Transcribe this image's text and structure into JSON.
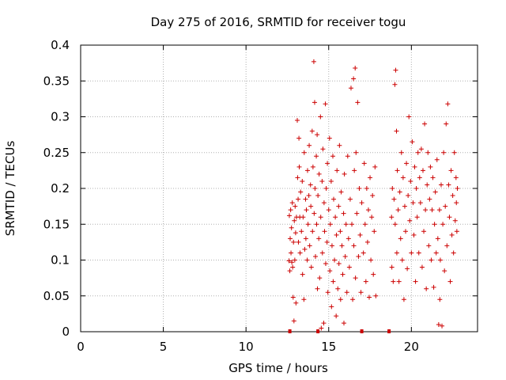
{
  "chart_data": {
    "type": "scatter",
    "title": "Day 275 of 2016, SRMTID for receiver togu",
    "xlabel": "GPS time / hours",
    "ylabel": "SRMTID / TECUs",
    "xlim": [
      0,
      24
    ],
    "ylim": [
      0,
      0.4
    ],
    "x_ticks": [
      0,
      5,
      10,
      15,
      20
    ],
    "x_tick_labels": [
      "0",
      "5",
      "10",
      "15",
      "20"
    ],
    "y_ticks": [
      0,
      0.05,
      0.1,
      0.15,
      0.2,
      0.25,
      0.3,
      0.35,
      0.4
    ],
    "y_tick_labels": [
      "0",
      "0.05",
      "0.1",
      "0.15",
      "0.2",
      "0.25",
      "0.3",
      "0.35",
      "0.4"
    ],
    "grid": true,
    "marker": "+",
    "series_color": "#cc0000",
    "grid_color": "#b0b0b0",
    "series": [
      {
        "name": "SRMTID",
        "points": [
          [
            12.6,
            0.099
          ],
          [
            12.62,
            0.162
          ],
          [
            12.65,
            0.085
          ],
          [
            12.67,
            0.13
          ],
          [
            12.7,
            0.17
          ],
          [
            12.72,
            0.11
          ],
          [
            12.75,
            0.145
          ],
          [
            12.77,
            0.097
          ],
          [
            12.8,
            0.18
          ],
          [
            12.82,
            0.09
          ],
          [
            12.85,
            0.048
          ],
          [
            12.87,
            0.125
          ],
          [
            12.9,
            0.015
          ],
          [
            12.92,
            0.155
          ],
          [
            12.95,
            0.1
          ],
          [
            12.97,
            0.175
          ],
          [
            13.0,
            0.138
          ],
          [
            13.02,
            0.04
          ],
          [
            13.05,
            0.16
          ],
          [
            13.1,
            0.295
          ],
          [
            13.12,
            0.215
          ],
          [
            13.15,
            0.185
          ],
          [
            13.17,
            0.125
          ],
          [
            13.2,
            0.27
          ],
          [
            13.22,
            0.23
          ],
          [
            13.25,
            0.16
          ],
          [
            13.27,
            0.11
          ],
          [
            13.3,
            0.195
          ],
          [
            13.35,
            0.14
          ],
          [
            13.4,
            0.21
          ],
          [
            13.42,
            0.08
          ],
          [
            13.45,
            0.16
          ],
          [
            13.5,
            0.045
          ],
          [
            13.52,
            0.25
          ],
          [
            13.55,
            0.115
          ],
          [
            13.6,
            0.185
          ],
          [
            13.62,
            0.13
          ],
          [
            13.65,
            0.17
          ],
          [
            13.7,
            0.1
          ],
          [
            13.72,
            0.225
          ],
          [
            13.75,
            0.15
          ],
          [
            13.8,
            0.19
          ],
          [
            13.82,
            0.26
          ],
          [
            13.85,
            0.12
          ],
          [
            13.9,
            0.205
          ],
          [
            13.92,
            0.175
          ],
          [
            13.95,
            0.09
          ],
          [
            14.0,
            0.28
          ],
          [
            14.02,
            0.14
          ],
          [
            14.05,
            0.23
          ],
          [
            14.1,
            0.377
          ],
          [
            14.12,
            0.165
          ],
          [
            14.15,
            0.32
          ],
          [
            14.17,
            0.2
          ],
          [
            14.2,
            0.105
          ],
          [
            14.25,
            0.245
          ],
          [
            14.27,
            0.15
          ],
          [
            14.3,
            0.275
          ],
          [
            14.32,
            0.06
          ],
          [
            14.35,
            0.19
          ],
          [
            14.4,
            0.13
          ],
          [
            14.42,
            0.22
          ],
          [
            14.45,
            0.075
          ],
          [
            14.5,
            0.3
          ],
          [
            14.52,
            0.16
          ],
          [
            14.55,
            0.005
          ],
          [
            14.6,
            0.21
          ],
          [
            14.62,
            0.11
          ],
          [
            14.65,
            0.255
          ],
          [
            14.7,
            0.012
          ],
          [
            14.72,
            0.18
          ],
          [
            14.75,
            0.14
          ],
          [
            14.8,
            0.318
          ],
          [
            14.82,
            0.095
          ],
          [
            14.85,
            0.2
          ],
          [
            14.9,
            0.125
          ],
          [
            14.92,
            0.235
          ],
          [
            14.95,
            0.055
          ],
          [
            15.0,
            0.17
          ],
          [
            15.05,
            0.27
          ],
          [
            15.07,
            0.085
          ],
          [
            15.1,
            0.15
          ],
          [
            15.15,
            0.21
          ],
          [
            15.17,
            0.035
          ],
          [
            15.2,
            0.12
          ],
          [
            15.25,
            0.245
          ],
          [
            15.27,
            0.07
          ],
          [
            15.3,
            0.185
          ],
          [
            15.35,
            0.1
          ],
          [
            15.4,
            0.16
          ],
          [
            15.45,
            0.022
          ],
          [
            15.47,
            0.135
          ],
          [
            15.5,
            0.225
          ],
          [
            15.55,
            0.06
          ],
          [
            15.6,
            0.175
          ],
          [
            15.62,
            0.095
          ],
          [
            15.65,
            0.26
          ],
          [
            15.7,
            0.14
          ],
          [
            15.72,
            0.045
          ],
          [
            15.75,
            0.195
          ],
          [
            15.8,
            0.12
          ],
          [
            15.85,
            0.08
          ],
          [
            15.9,
            0.165
          ],
          [
            15.92,
            0.012
          ],
          [
            15.95,
            0.22
          ],
          [
            16.0,
            0.105
          ],
          [
            16.05,
            0.15
          ],
          [
            16.1,
            0.055
          ],
          [
            16.15,
            0.245
          ],
          [
            16.2,
            0.13
          ],
          [
            16.25,
            0.09
          ],
          [
            16.3,
            0.185
          ],
          [
            16.35,
            0.34
          ],
          [
            16.4,
            0.15
          ],
          [
            16.45,
            0.045
          ],
          [
            16.5,
            0.353
          ],
          [
            16.52,
            0.12
          ],
          [
            16.55,
            0.225
          ],
          [
            16.6,
            0.368
          ],
          [
            16.62,
            0.075
          ],
          [
            16.65,
            0.25
          ],
          [
            16.7,
            0.165
          ],
          [
            16.75,
            0.32
          ],
          [
            16.8,
            0.105
          ],
          [
            16.85,
            0.2
          ],
          [
            16.9,
            0.135
          ],
          [
            16.95,
            0.055
          ],
          [
            17.0,
            0.18
          ],
          [
            17.1,
            0.11
          ],
          [
            17.15,
            0.235
          ],
          [
            17.2,
            0.15
          ],
          [
            17.25,
            0.07
          ],
          [
            17.3,
            0.2
          ],
          [
            17.35,
            0.125
          ],
          [
            17.4,
            0.17
          ],
          [
            17.45,
            0.048
          ],
          [
            17.5,
            0.215
          ],
          [
            17.55,
            0.1
          ],
          [
            17.6,
            0.16
          ],
          [
            17.65,
            0.19
          ],
          [
            17.7,
            0.08
          ],
          [
            17.75,
            0.14
          ],
          [
            17.8,
            0.23
          ],
          [
            17.85,
            0.05
          ],
          [
            18.8,
            0.16
          ],
          [
            18.82,
            0.09
          ],
          [
            18.85,
            0.2
          ],
          [
            18.9,
            0.07
          ],
          [
            18.95,
            0.185
          ],
          [
            19.0,
            0.345
          ],
          [
            19.02,
            0.15
          ],
          [
            19.05,
            0.365
          ],
          [
            19.1,
            0.28
          ],
          [
            19.12,
            0.11
          ],
          [
            19.15,
            0.225
          ],
          [
            19.2,
            0.17
          ],
          [
            19.25,
            0.07
          ],
          [
            19.3,
            0.195
          ],
          [
            19.35,
            0.13
          ],
          [
            19.4,
            0.25
          ],
          [
            19.45,
            0.1
          ],
          [
            19.5,
            0.215
          ],
          [
            19.55,
            0.045
          ],
          [
            19.6,
            0.175
          ],
          [
            19.65,
            0.14
          ],
          [
            19.7,
            0.235
          ],
          [
            19.75,
            0.088
          ],
          [
            19.8,
            0.19
          ],
          [
            19.85,
            0.3
          ],
          [
            19.9,
            0.155
          ],
          [
            19.95,
            0.21
          ],
          [
            20.0,
            0.11
          ],
          [
            20.05,
            0.265
          ],
          [
            20.1,
            0.18
          ],
          [
            20.15,
            0.135
          ],
          [
            20.2,
            0.23
          ],
          [
            20.25,
            0.07
          ],
          [
            20.3,
            0.2
          ],
          [
            20.35,
            0.16
          ],
          [
            20.4,
            0.25
          ],
          [
            20.45,
            0.11
          ],
          [
            20.5,
            0.215
          ],
          [
            20.55,
            0.18
          ],
          [
            20.6,
            0.255
          ],
          [
            20.65,
            0.09
          ],
          [
            20.7,
            0.225
          ],
          [
            20.75,
            0.14
          ],
          [
            20.8,
            0.29
          ],
          [
            20.85,
            0.17
          ],
          [
            20.9,
            0.06
          ],
          [
            20.95,
            0.205
          ],
          [
            21.0,
            0.25
          ],
          [
            21.05,
            0.12
          ],
          [
            21.1,
            0.185
          ],
          [
            21.15,
            0.23
          ],
          [
            21.2,
            0.1
          ],
          [
            21.25,
            0.17
          ],
          [
            21.3,
            0.215
          ],
          [
            21.35,
            0.062
          ],
          [
            21.4,
            0.15
          ],
          [
            21.45,
            0.195
          ],
          [
            21.5,
            0.11
          ],
          [
            21.55,
            0.24
          ],
          [
            21.6,
            0.13
          ],
          [
            21.65,
            0.01
          ],
          [
            21.7,
            0.17
          ],
          [
            21.72,
            0.045
          ],
          [
            21.75,
            0.1
          ],
          [
            21.8,
            0.205
          ],
          [
            21.85,
            0.008
          ],
          [
            21.9,
            0.15
          ],
          [
            21.95,
            0.25
          ],
          [
            22.0,
            0.085
          ],
          [
            22.05,
            0.175
          ],
          [
            22.1,
            0.29
          ],
          [
            22.15,
            0.12
          ],
          [
            22.2,
            0.318
          ],
          [
            22.25,
            0.205
          ],
          [
            22.3,
            0.16
          ],
          [
            22.35,
            0.07
          ],
          [
            22.4,
            0.225
          ],
          [
            22.45,
            0.135
          ],
          [
            22.5,
            0.19
          ],
          [
            22.55,
            0.11
          ],
          [
            22.6,
            0.25
          ],
          [
            22.65,
            0.155
          ],
          [
            22.7,
            0.215
          ],
          [
            22.72,
            0.18
          ],
          [
            22.75,
            0.14
          ],
          [
            22.78,
            0.2
          ]
        ]
      }
    ],
    "axis_markers_x": [
      12.65,
      14.35,
      17.0,
      18.65
    ]
  }
}
